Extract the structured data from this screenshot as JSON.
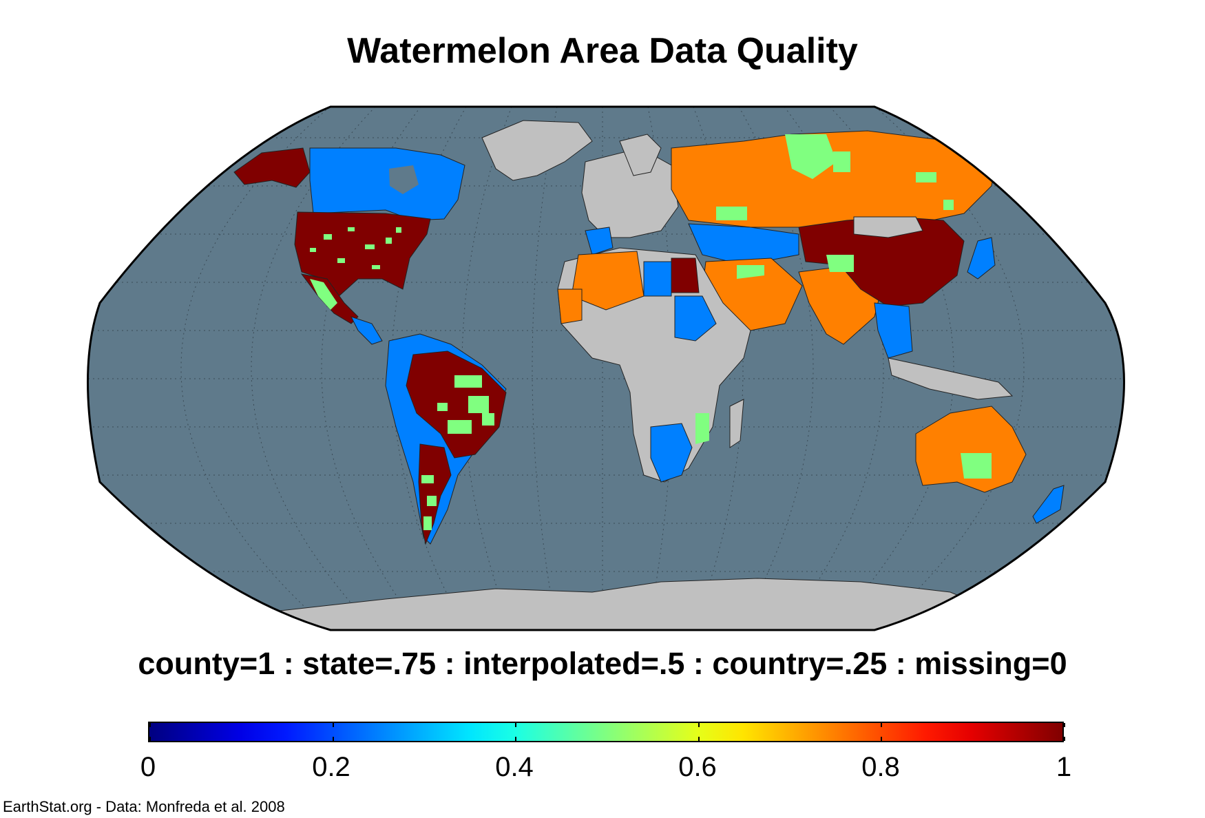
{
  "title": "Watermelon Area Data Quality",
  "legend": {
    "caption": "county=1 : state=.75 : interpolated=.5 : country=.25 : missing=0",
    "ticks": [
      "0",
      "0.2",
      "0.4",
      "0.6",
      "0.8",
      "1"
    ],
    "range": [
      0,
      1
    ],
    "colormap": "jet"
  },
  "credit": "EarthStat.org - Data: Monfreda et al. 2008",
  "colors": {
    "ocean": "#5f7a8b",
    "land_no_data": "#c0c0c0",
    "county": "#800000",
    "state": "#ff8000",
    "interpolated": "#80ff80",
    "country": "#0080ff"
  },
  "map": {
    "projection": "Robinson",
    "regions": [
      {
        "name": "Canada",
        "level": "country"
      },
      {
        "name": "United States",
        "level": "county"
      },
      {
        "name": "Mexico",
        "level": "interpolated"
      },
      {
        "name": "Brazil",
        "level": "county"
      },
      {
        "name": "Argentina",
        "level": "county"
      },
      {
        "name": "Russia",
        "level": "state"
      },
      {
        "name": "China",
        "level": "county"
      },
      {
        "name": "India",
        "level": "state"
      },
      {
        "name": "Australia",
        "level": "state"
      },
      {
        "name": "Egypt",
        "level": "county"
      },
      {
        "name": "Greenland",
        "level": "missing"
      },
      {
        "name": "Antarctica",
        "level": "missing"
      }
    ]
  }
}
